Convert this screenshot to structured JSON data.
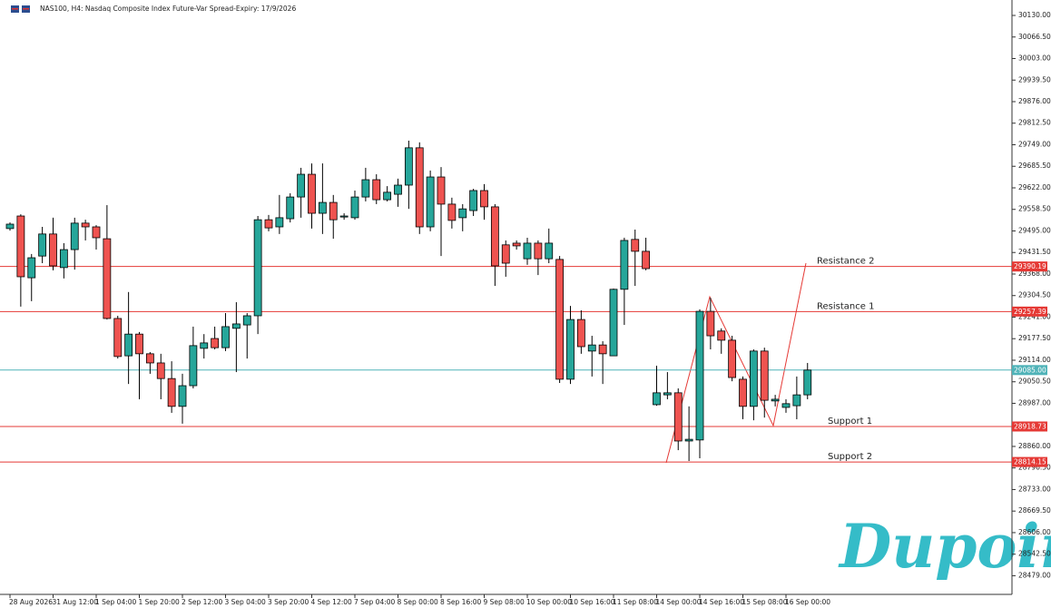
{
  "chart_data": {
    "type": "candlestick",
    "title": "NAS100, H4:  Nasdaq Composite Index Future-Var Spread-Expiry: 17/9/2026",
    "watermark": "Dupoin",
    "categories": [
      "28 Aug 2026",
      null,
      null,
      null,
      "31 Aug 12:00",
      null,
      null,
      null,
      "1 Sep 04:00",
      null,
      null,
      null,
      "1 Sep 20:00",
      null,
      null,
      null,
      "2 Sep 12:00",
      null,
      null,
      null,
      "3 Sep 04:00",
      null,
      null,
      null,
      "3 Sep 20:00",
      null,
      null,
      null,
      "4 Sep 12:00",
      null,
      null,
      null,
      "7 Sep 04:00",
      null,
      null,
      null,
      "8 Sep 00:00",
      null,
      null,
      null,
      "8 Sep 16:00",
      null,
      null,
      null,
      "9 Sep 08:00",
      null,
      null,
      null,
      "10 Sep 00:00",
      null,
      null,
      null,
      "10 Sep 16:00",
      null,
      null,
      null,
      "11 Sep 08:00",
      null,
      null,
      null,
      "14 Sep 00:00",
      null,
      null,
      null,
      "14 Sep 16:00",
      null,
      null,
      null,
      "15 Sep 08:00",
      null,
      null,
      null,
      "16 Sep 00:00",
      null,
      null
    ],
    "open": [
      29502,
      29539,
      29357,
      29421,
      29486,
      29387,
      29440,
      29518,
      29507,
      29472,
      29237,
      29127,
      29191,
      29133,
      29106,
      29060,
      28978,
      29039,
      29149,
      29178,
      29151,
      29208,
      29218,
      29245,
      29528,
      29507,
      29531,
      29595,
      29662,
      29547,
      29579,
      29536,
      29534,
      29595,
      29646,
      29587,
      29603,
      29630,
      29740,
      29507,
      29654,
      29574,
      29534,
      29555,
      29614,
      29566,
      29454,
      29459,
      29413,
      29459,
      29413,
      29411,
      29058,
      29234,
      29141,
      29159,
      29127,
      29323,
      29470,
      29435,
      28983,
      29012,
      29018,
      28876,
      28879,
      29258,
      29200,
      29173,
      29058,
      28978,
      29141,
      28994,
      28975,
      28980,
      29012
    ],
    "high": [
      29520,
      29544,
      29427,
      29507,
      29534,
      29459,
      29534,
      29528,
      29512,
      29571,
      29245,
      29315,
      29197,
      29138,
      29133,
      29111,
      29074,
      29213,
      29191,
      29213,
      29253,
      29285,
      29253,
      29539,
      29542,
      29601,
      29606,
      29681,
      29694,
      29694,
      29601,
      29547,
      29614,
      29681,
      29662,
      29627,
      29649,
      29761,
      29756,
      29673,
      29683,
      29593,
      29574,
      29619,
      29633,
      29574,
      29467,
      29467,
      29475,
      29467,
      29502,
      29421,
      29274,
      29261,
      29186,
      29170,
      29325,
      29475,
      29499,
      29475,
      29098,
      29079,
      29031,
      28978,
      29264,
      29298,
      29208,
      29186,
      29066,
      29146,
      29151,
      29012,
      28999,
      29066,
      29106
    ],
    "low": [
      29496,
      29272,
      29288,
      29400,
      29379,
      29355,
      29381,
      29467,
      29440,
      29234,
      29119,
      29044,
      28999,
      29074,
      28999,
      28959,
      28927,
      29031,
      29119,
      29146,
      29141,
      29079,
      29119,
      29191,
      29494,
      29486,
      29520,
      29534,
      29502,
      29486,
      29472,
      29528,
      29528,
      29582,
      29574,
      29582,
      29566,
      29560,
      29486,
      29494,
      29421,
      29502,
      29494,
      29539,
      29528,
      29333,
      29360,
      29440,
      29395,
      29365,
      29400,
      29047,
      29044,
      29133,
      29066,
      29044,
      29127,
      29218,
      29333,
      29379,
      28980,
      28999,
      28849,
      28817,
      28825,
      29146,
      29133,
      29052,
      28940,
      28937,
      28945,
      28978,
      28959,
      28940,
      28999
    ],
    "close": [
      29515,
      29360,
      29416,
      29486,
      29392,
      29440,
      29518,
      29507,
      29475,
      29237,
      29125,
      29191,
      29133,
      29106,
      29060,
      28978,
      29039,
      29157,
      29165,
      29151,
      29213,
      29221,
      29245,
      29528,
      29504,
      29534,
      29595,
      29662,
      29547,
      29579,
      29528,
      29539,
      29595,
      29646,
      29587,
      29609,
      29630,
      29740,
      29507,
      29654,
      29574,
      29526,
      29560,
      29614,
      29566,
      29392,
      29400,
      29451,
      29459,
      29413,
      29459,
      29058,
      29234,
      29154,
      29159,
      29133,
      29323,
      29467,
      29435,
      29384,
      29018,
      29018,
      28876,
      28881,
      29258,
      29186,
      29173,
      29063,
      28978,
      29141,
      28996,
      28999,
      28986,
      29012,
      29085
    ],
    "up_color": "#26a69a",
    "down_color": "#ef5350",
    "ylim": [
      28424,
      30175.5
    ],
    "yticks": [
      {
        "value": 28479,
        "label": "28479.00"
      },
      {
        "value": 28542.5,
        "label": "28542.50"
      },
      {
        "value": 28606,
        "label": "28606.00"
      },
      {
        "value": 28669.5,
        "label": "28669.50"
      },
      {
        "value": 28733,
        "label": "28733.00"
      },
      {
        "value": 28796.5,
        "label": "28796.50"
      },
      {
        "value": 28860,
        "label": "28860.00"
      },
      {
        "value": 28987,
        "label": "28987.00"
      },
      {
        "value": 29050.5,
        "label": "29050.50"
      },
      {
        "value": 29114,
        "label": "29114.00"
      },
      {
        "value": 29177.5,
        "label": "29177.50"
      },
      {
        "value": 29241,
        "label": "29241.00"
      },
      {
        "value": 29304.5,
        "label": "29304.50"
      },
      {
        "value": 29368,
        "label": "29368.00"
      },
      {
        "value": 29431.5,
        "label": "29431.50"
      },
      {
        "value": 29495,
        "label": "29495.00"
      },
      {
        "value": 29558.5,
        "label": "29558.50"
      },
      {
        "value": 29622,
        "label": "29622.00"
      },
      {
        "value": 29685.5,
        "label": "29685.50"
      },
      {
        "value": 29749,
        "label": "29749.00"
      },
      {
        "value": 29812.5,
        "label": "29812.50"
      },
      {
        "value": 29876,
        "label": "29876.00"
      },
      {
        "value": 29939.5,
        "label": "29939.50"
      },
      {
        "value": 30003,
        "label": "30003.00"
      },
      {
        "value": 30066.5,
        "label": "30066.50"
      },
      {
        "value": 30130,
        "label": "30130.00"
      }
    ],
    "levels": [
      {
        "name": "Resistance 2",
        "value": 29390.19,
        "color": "#e53935"
      },
      {
        "name": "Resistance 1",
        "value": 29257.39,
        "color": "#e53935"
      },
      {
        "name": "Support 1",
        "value": 28918.73,
        "color": "#e53935"
      },
      {
        "name": "Support 2",
        "value": 28814.15,
        "color": "#e53935"
      }
    ],
    "current_price": {
      "value": 29085,
      "label": "29085.00",
      "color": "#4fb3b8"
    }
  }
}
